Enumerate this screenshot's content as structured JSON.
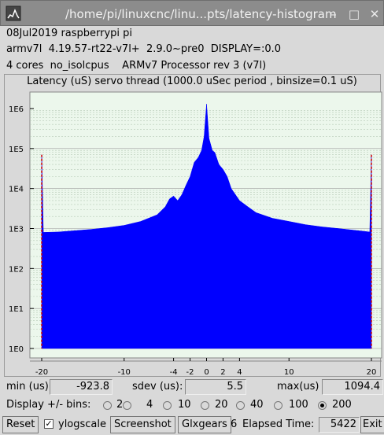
{
  "window": {
    "title": "/home/pi/linuxcnc/linu...pts/latency-histogram",
    "icon": "latency-histogram-app-icon",
    "buttons": {
      "minimize": "–",
      "maximize": "□",
      "close": "✕"
    }
  },
  "system_info": {
    "line1": "08Jul2019 raspberrypi pi",
    "line2": "armv7l  4.19.57-rt22-v7l+  2.9.0~pre0  DISPLAY=:0.0",
    "line3": "4 cores  no_isolcpus    ARMv7 Processor rev 3 (v7l)"
  },
  "chart_data": {
    "type": "area",
    "title": "Latency (uS) servo thread (1000.0 uSec period , binsize=0.1 uS)",
    "xlabel": "",
    "ylabel": "",
    "xlim": [
      -20,
      20
    ],
    "ylim": [
      1,
      2000000
    ],
    "y_scale": "log",
    "x_ticks": [
      -20,
      -10,
      -4,
      -2,
      0,
      2,
      4,
      10,
      20
    ],
    "y_tick_labels": [
      "1E0",
      "1E1",
      "1E2",
      "1E3",
      "1E4",
      "1E5",
      "1E6"
    ],
    "y_ticks": [
      1,
      10,
      100,
      1000,
      10000,
      100000,
      1000000
    ],
    "grid": true,
    "color": "#0000ff",
    "background": "#ecf7ec",
    "points": [
      [
        -20,
        70000
      ],
      [
        -19.8,
        800
      ],
      [
        -18,
        820
      ],
      [
        -16,
        880
      ],
      [
        -14,
        950
      ],
      [
        -12,
        1050
      ],
      [
        -10,
        1200
      ],
      [
        -8,
        1500
      ],
      [
        -6,
        2200
      ],
      [
        -5,
        3500
      ],
      [
        -4.5,
        5500
      ],
      [
        -4,
        6500
      ],
      [
        -3.5,
        5000
      ],
      [
        -3,
        7000
      ],
      [
        -2.5,
        12000
      ],
      [
        -2,
        20000
      ],
      [
        -1.5,
        45000
      ],
      [
        -1,
        60000
      ],
      [
        -0.6,
        90000
      ],
      [
        -0.3,
        200000
      ],
      [
        0,
        1300000
      ],
      [
        0.3,
        180000
      ],
      [
        0.7,
        90000
      ],
      [
        1,
        80000
      ],
      [
        1.5,
        40000
      ],
      [
        2,
        30000
      ],
      [
        2.5,
        20000
      ],
      [
        3,
        10000
      ],
      [
        4,
        5000
      ],
      [
        5,
        3500
      ],
      [
        6,
        2500
      ],
      [
        8,
        1800
      ],
      [
        10,
        1500
      ],
      [
        12,
        1250
      ],
      [
        14,
        1100
      ],
      [
        16,
        1000
      ],
      [
        18,
        900
      ],
      [
        19.8,
        820
      ],
      [
        20,
        70000
      ]
    ],
    "edge_spikes": [
      -20,
      20
    ]
  },
  "stats": {
    "min_label": "min (us)",
    "min_value": "-923.8",
    "sdev_label": "sdev (us):",
    "sdev_value": "5.5",
    "max_label": "max(us)",
    "max_value": "1094.4"
  },
  "bins": {
    "label": "Display +/- bins:",
    "options": [
      "2",
      "4",
      "10",
      "20",
      "40",
      "100",
      "200"
    ],
    "selected": "200"
  },
  "bottom": {
    "reset": "Reset",
    "ylogscale": "ylogscale",
    "ylogscale_checked": true,
    "screenshot": "Screenshot",
    "glxgears": "Glxgears",
    "glxgears_count": "6",
    "elapsed_label": "Elapsed Time:",
    "elapsed_value": "5422",
    "exit": "Exit"
  }
}
